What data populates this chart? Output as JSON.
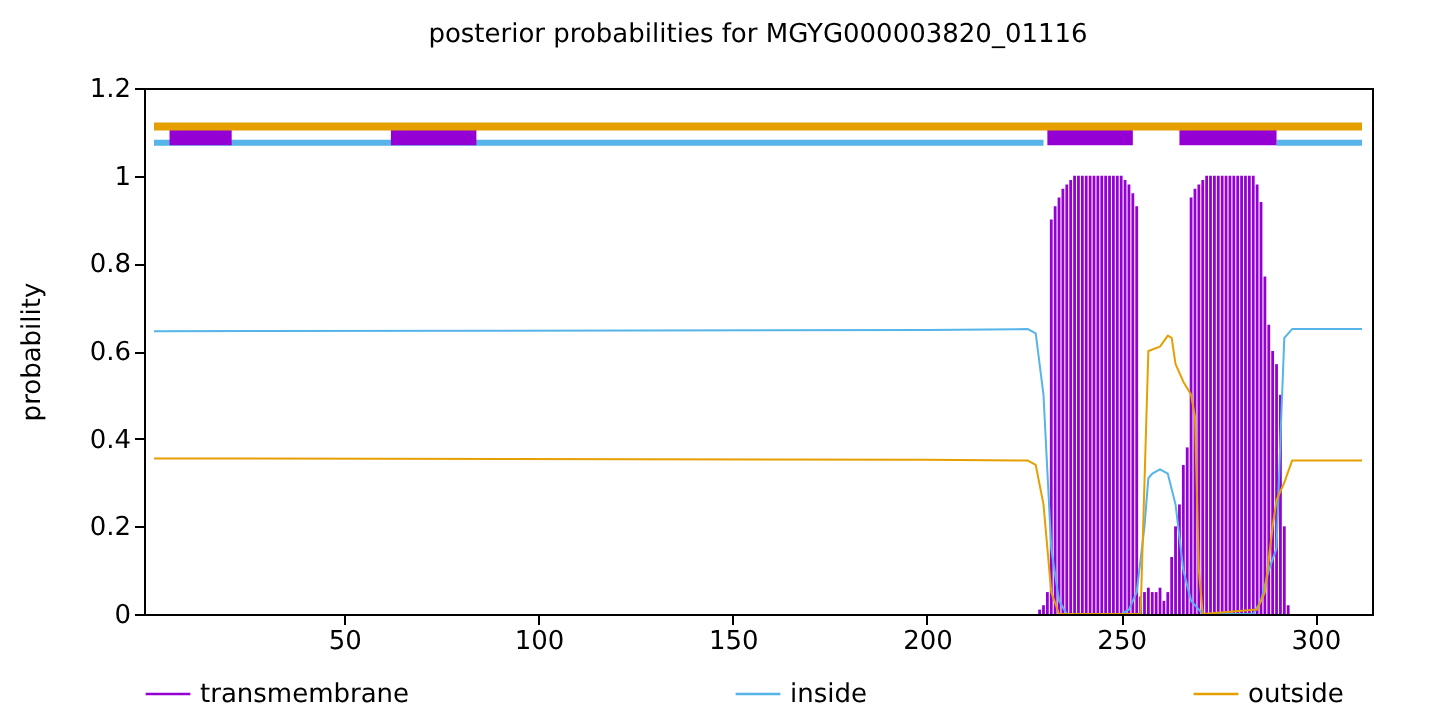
{
  "chart_data": {
    "type": "line",
    "title": "posterior probabilities for MGYG000003820_01116",
    "ylabel": "probability",
    "xlim": [
      1,
      312
    ],
    "xticks": [
      50,
      100,
      150,
      200,
      250,
      300
    ],
    "ylim": [
      0,
      1.2
    ],
    "yticks": [
      0,
      0.2,
      0.4,
      0.6,
      0.8,
      1,
      1.2
    ],
    "grid": false,
    "legend": "bottom",
    "series": [
      {
        "name": "transmembrane",
        "type": "bar",
        "color": "#9400d3",
        "x": [
          229,
          230,
          231,
          232,
          233,
          234,
          235,
          236,
          237,
          238,
          239,
          240,
          241,
          242,
          243,
          244,
          245,
          246,
          247,
          248,
          249,
          250,
          251,
          252,
          253,
          254,
          255,
          256,
          257,
          258,
          259,
          260,
          261,
          262,
          263,
          264,
          265,
          266,
          267,
          268,
          269,
          270,
          271,
          272,
          273,
          274,
          275,
          276,
          277,
          278,
          279,
          280,
          281,
          282,
          283,
          284,
          285,
          286,
          287,
          288,
          289,
          290,
          291,
          292,
          293
        ],
        "values": [
          0.01,
          0.02,
          0.05,
          0.9,
          0.93,
          0.95,
          0.97,
          0.98,
          0.99,
          1,
          1,
          1,
          1,
          1,
          1,
          1,
          1,
          1,
          1,
          1,
          1,
          1,
          0.99,
          0.98,
          0.96,
          0.93,
          0.04,
          0.05,
          0.06,
          0.05,
          0.05,
          0.06,
          0.03,
          0.05,
          0.13,
          0.2,
          0.25,
          0.34,
          0.38,
          0.95,
          0.97,
          0.98,
          0.99,
          1,
          1,
          1,
          1,
          1,
          1,
          1,
          1,
          1,
          1,
          1,
          1,
          1,
          0.98,
          0.94,
          0.77,
          0.66,
          0.6,
          0.57,
          0.5,
          0.2,
          0.02
        ]
      },
      {
        "name": "inside",
        "color": "#56b4e9",
        "x": [
          1,
          200,
          226,
          228,
          230,
          232,
          234,
          236,
          250,
          252,
          254,
          256,
          257,
          258,
          260,
          262,
          264,
          266,
          268,
          271,
          284,
          286,
          288,
          290,
          291,
          292,
          294,
          312
        ],
        "values": [
          0.645,
          0.648,
          0.65,
          0.64,
          0.5,
          0.15,
          0.03,
          0,
          0,
          0.01,
          0.05,
          0.2,
          0.31,
          0.32,
          0.33,
          0.32,
          0.25,
          0.1,
          0.03,
          0,
          0,
          0.03,
          0.1,
          0.15,
          0.4,
          0.63,
          0.65,
          0.65
        ]
      },
      {
        "name": "outside",
        "color": "#e69f00",
        "x": [
          1,
          200,
          226,
          228,
          230,
          232,
          234,
          255,
          256,
          257,
          260,
          262,
          263,
          264,
          266,
          268,
          269,
          270,
          271,
          285,
          287,
          289,
          290,
          292,
          294,
          312
        ],
        "values": [
          0.355,
          0.352,
          0.35,
          0.34,
          0.25,
          0.05,
          0,
          0,
          0.3,
          0.6,
          0.61,
          0.635,
          0.63,
          0.57,
          0.53,
          0.5,
          0.45,
          0.1,
          0,
          0.01,
          0.05,
          0.2,
          0.26,
          0.3,
          0.35,
          0.35
        ]
      },
      {
        "color": "#56b4e9",
        "x": [
          1,
          230
        ],
        "values": [
          1.075,
          1.075
        ]
      },
      {
        "color": "#56b4e9",
        "x": [
          290,
          312
        ],
        "values": [
          1.075,
          1.075
        ]
      },
      {
        "color": "#9400d3",
        "x": [
          5,
          21
        ],
        "values": [
          1.09,
          1.09
        ]
      },
      {
        "color": "#9400d3",
        "x": [
          62,
          84
        ],
        "values": [
          1.09,
          1.09
        ]
      },
      {
        "color": "#9400d3",
        "x": [
          231,
          253
        ],
        "values": [
          1.09,
          1.09
        ]
      },
      {
        "color": "#9400d3",
        "x": [
          265,
          290
        ],
        "values": [
          1.09,
          1.09
        ]
      },
      {
        "color": "#e69f00",
        "x": [
          1,
          312
        ],
        "values": [
          1.112,
          1.112
        ]
      }
    ]
  }
}
